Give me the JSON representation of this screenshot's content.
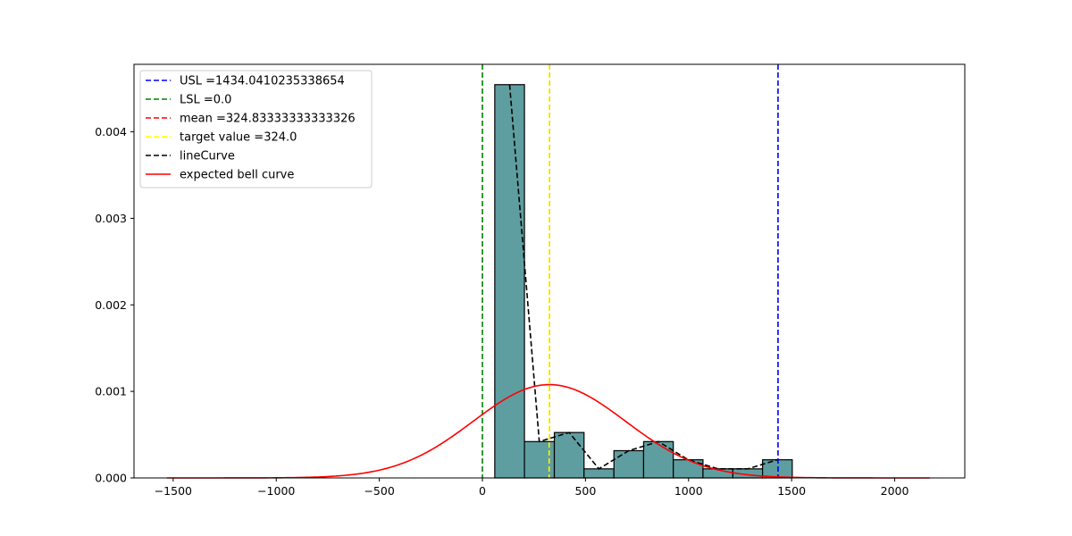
{
  "chart_data": {
    "type": "bar",
    "title": "",
    "xlabel": "",
    "ylabel": "",
    "xlim": [
      -1690,
      2340
    ],
    "ylim": [
      0,
      0.00478
    ],
    "x_ticks": [
      -1500,
      -1000,
      -500,
      0,
      500,
      1000,
      1500,
      2000
    ],
    "x_tick_labels": [
      "−1500",
      "−1000",
      "−500",
      "0",
      "500",
      "1000",
      "1500",
      "2000"
    ],
    "y_ticks": [
      0,
      0.001,
      0.002,
      0.003,
      0.004
    ],
    "y_tick_labels": [
      "0.000",
      "0.001",
      "0.002",
      "0.003",
      "0.004"
    ],
    "grid": false,
    "legend_position": "top-left",
    "histogram": {
      "bin_edges": [
        60,
        204,
        349,
        493,
        638,
        782,
        926,
        1070,
        1215,
        1359,
        1503
      ],
      "density": [
        0.004545,
        0.00042,
        0.000525,
        0.000105,
        0.000315,
        0.00042,
        0.00021,
        0.000105,
        0.000105,
        0.00021
      ],
      "fill_color": "#5f9ea0",
      "edge_color": "#000000"
    },
    "series": [
      {
        "name": "USL =1434.0410235338654",
        "kind": "vline",
        "x": 1434.0410235338654,
        "color": "#0000ff",
        "dashed": true
      },
      {
        "name": "LSL =0.0",
        "kind": "vline",
        "x": 0.0,
        "color": "#008000",
        "dashed": true
      },
      {
        "name": "mean =324.83333333333326",
        "kind": "vline",
        "x": 324.83333333333326,
        "color": "#ff0000",
        "dashed": true
      },
      {
        "name": "target value =324.0",
        "kind": "vline",
        "x": 324.0,
        "color": "#ffff00",
        "dashed": true
      },
      {
        "name": "lineCurve",
        "kind": "line",
        "color": "#000000",
        "dashed": true,
        "x": [
          132,
          276,
          421,
          565,
          710,
          854,
          998,
          1142,
          1287,
          1431
        ],
        "y": [
          0.004545,
          0.00042,
          0.000525,
          0.000105,
          0.000315,
          0.00042,
          0.00021,
          0.000105,
          0.000105,
          0.00021
        ]
      },
      {
        "name": "expected bell curve",
        "kind": "normal",
        "color": "#ff0000",
        "dashed": false,
        "mean": 324.83333333333326,
        "std": 370,
        "x_range": [
          -1530,
          2170
        ]
      }
    ]
  }
}
